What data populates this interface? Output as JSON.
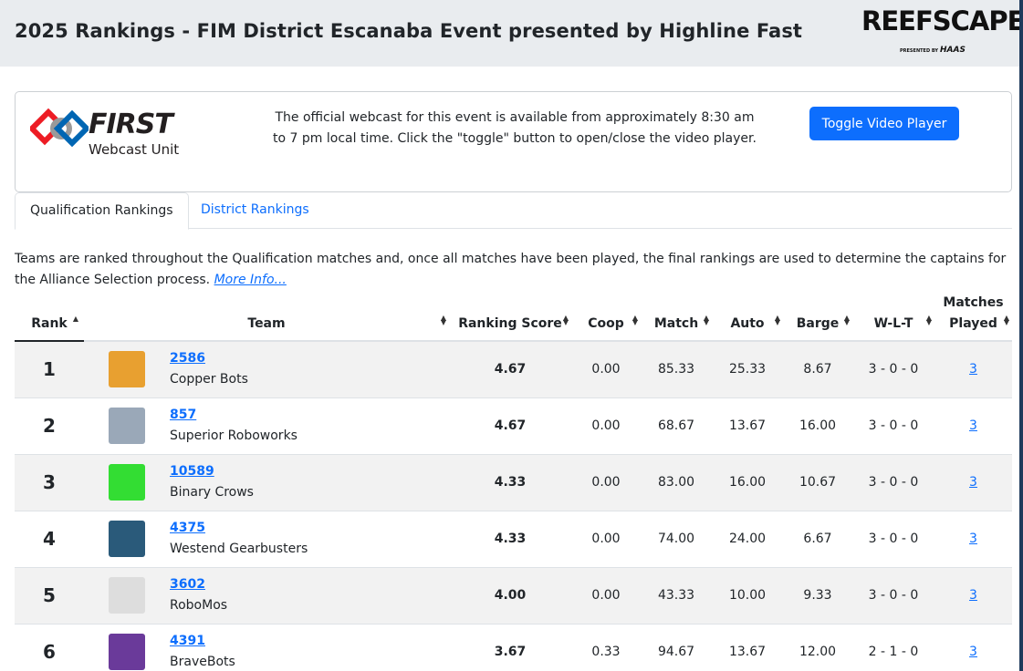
{
  "header": {
    "title": "2025 Rankings - FIM District Escanaba Event presented by Highline Fast",
    "game_logo": "REEFSCAPE",
    "game_logo_presented": "PRESENTED BY",
    "game_logo_sponsor": "HAAS"
  },
  "webcast": {
    "logo_word": "FIRST",
    "logo_unit": "Webcast Unit",
    "text": "The official webcast for this event is available from approximately 8:30 am to 7 pm local time. Click the \"toggle\" button to open/close the video player.",
    "toggle_label": "Toggle Video Player"
  },
  "tabs": [
    {
      "label": "Qualification Rankings",
      "active": true
    },
    {
      "label": "District Rankings",
      "active": false
    }
  ],
  "intro": {
    "text": "Teams are ranked throughout the Qualification matches and, once all matches have been played, the final rankings are used to determine the captains for the Alliance Selection process.",
    "link": "More Info..."
  },
  "table": {
    "headers": {
      "rank": "Rank",
      "team": "Team",
      "ranking_score": "Ranking Score",
      "coop": "Coop",
      "match": "Match",
      "auto": "Auto",
      "barge": "Barge",
      "wlt": "W-L-T",
      "matches_played_1": "Matches",
      "matches_played_2": "Played"
    },
    "rows": [
      {
        "rank": "1",
        "number": "2586",
        "name": "Copper Bots",
        "score": "4.67",
        "coop": "0.00",
        "match": "85.33",
        "auto": "25.33",
        "barge": "8.67",
        "wlt": "3 - 0 - 0",
        "played": "3",
        "avatar_color": "#e8a030"
      },
      {
        "rank": "2",
        "number": "857",
        "name": "Superior Roboworks",
        "score": "4.67",
        "coop": "0.00",
        "match": "68.67",
        "auto": "13.67",
        "barge": "16.00",
        "wlt": "3 - 0 - 0",
        "played": "3",
        "avatar_color": "#9aa8b8"
      },
      {
        "rank": "3",
        "number": "10589",
        "name": "Binary Crows",
        "score": "4.33",
        "coop": "0.00",
        "match": "83.00",
        "auto": "16.00",
        "barge": "10.67",
        "wlt": "3 - 0 - 0",
        "played": "3",
        "avatar_color": "#33dd33"
      },
      {
        "rank": "4",
        "number": "4375",
        "name": "Westend Gearbusters",
        "score": "4.33",
        "coop": "0.00",
        "match": "74.00",
        "auto": "24.00",
        "barge": "6.67",
        "wlt": "3 - 0 - 0",
        "played": "3",
        "avatar_color": "#2a5a7a"
      },
      {
        "rank": "5",
        "number": "3602",
        "name": "RoboMos",
        "score": "4.00",
        "coop": "0.00",
        "match": "43.33",
        "auto": "10.00",
        "barge": "9.33",
        "wlt": "3 - 0 - 0",
        "played": "3",
        "avatar_color": "#dddddd"
      },
      {
        "rank": "6",
        "number": "4391",
        "name": "BraveBots",
        "score": "3.67",
        "coop": "0.33",
        "match": "94.67",
        "auto": "13.67",
        "barge": "12.00",
        "wlt": "2 - 1 - 0",
        "played": "3",
        "avatar_color": "#6a3a9a"
      }
    ]
  }
}
